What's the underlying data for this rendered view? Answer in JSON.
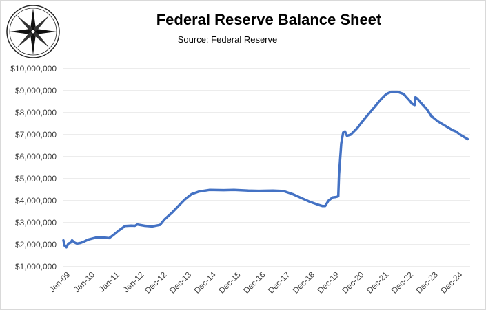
{
  "chart_data": {
    "type": "line",
    "title": "Federal Reserve Balance Sheet",
    "subtitle": "Source: Federal Reserve",
    "xlabel": "",
    "ylabel": "",
    "ylim": [
      1000000,
      10000000
    ],
    "y_ticks": [
      "$1,000,000",
      "$2,000,000",
      "$3,000,000",
      "$4,000,000",
      "$5,000,000",
      "$6,000,000",
      "$7,000,000",
      "$8,000,000",
      "$9,000,000",
      "$10,000,000"
    ],
    "y_tick_values": [
      1000000,
      2000000,
      3000000,
      4000000,
      5000000,
      6000000,
      7000000,
      8000000,
      9000000,
      10000000
    ],
    "x_ticks": [
      "Jan-09",
      "Jan-10",
      "Jan-11",
      "Jan-12",
      "Dec-12",
      "Dec-13",
      "Dec-14",
      "Dec-15",
      "Dec-16",
      "Dec-17",
      "Dec-18",
      "Dec-19",
      "Dec-20",
      "Dec-21",
      "Dec-22",
      "Dec-23",
      "Dec-24"
    ],
    "x_tick_years": [
      2009.0,
      2010.0,
      2011.0,
      2012.0,
      2012.92,
      2013.92,
      2014.92,
      2015.92,
      2016.92,
      2017.92,
      2018.92,
      2019.92,
      2020.92,
      2021.92,
      2022.92,
      2023.92,
      2024.92
    ],
    "xlim_years": [
      2009.0,
      2025.5
    ],
    "gridlines": "horizontal",
    "line_color": "#4472c4",
    "series": [
      {
        "name": "",
        "points": [
          [
            2009.0,
            2200000
          ],
          [
            2009.05,
            1950000
          ],
          [
            2009.12,
            1880000
          ],
          [
            2009.2,
            2050000
          ],
          [
            2009.3,
            2100000
          ],
          [
            2009.35,
            2200000
          ],
          [
            2009.45,
            2100000
          ],
          [
            2009.55,
            2050000
          ],
          [
            2009.7,
            2080000
          ],
          [
            2009.85,
            2150000
          ],
          [
            2010.0,
            2230000
          ],
          [
            2010.3,
            2320000
          ],
          [
            2010.6,
            2330000
          ],
          [
            2010.85,
            2300000
          ],
          [
            2011.0,
            2420000
          ],
          [
            2011.25,
            2650000
          ],
          [
            2011.5,
            2850000
          ],
          [
            2011.75,
            2870000
          ],
          [
            2011.9,
            2860000
          ],
          [
            2012.0,
            2920000
          ],
          [
            2012.3,
            2860000
          ],
          [
            2012.6,
            2830000
          ],
          [
            2012.92,
            2900000
          ],
          [
            2013.1,
            3150000
          ],
          [
            2013.4,
            3450000
          ],
          [
            2013.7,
            3800000
          ],
          [
            2013.92,
            4050000
          ],
          [
            2014.2,
            4300000
          ],
          [
            2014.5,
            4420000
          ],
          [
            2014.92,
            4490000
          ],
          [
            2015.5,
            4480000
          ],
          [
            2015.92,
            4490000
          ],
          [
            2016.5,
            4460000
          ],
          [
            2016.92,
            4450000
          ],
          [
            2017.5,
            4460000
          ],
          [
            2017.92,
            4440000
          ],
          [
            2018.3,
            4300000
          ],
          [
            2018.7,
            4100000
          ],
          [
            2019.0,
            3950000
          ],
          [
            2019.3,
            3830000
          ],
          [
            2019.5,
            3760000
          ],
          [
            2019.62,
            3760000
          ],
          [
            2019.75,
            4000000
          ],
          [
            2019.92,
            4150000
          ],
          [
            2020.05,
            4170000
          ],
          [
            2020.15,
            4200000
          ],
          [
            2020.18,
            5200000
          ],
          [
            2020.22,
            5800000
          ],
          [
            2020.27,
            6600000
          ],
          [
            2020.35,
            7100000
          ],
          [
            2020.42,
            7150000
          ],
          [
            2020.5,
            6950000
          ],
          [
            2020.65,
            7000000
          ],
          [
            2020.92,
            7300000
          ],
          [
            2021.2,
            7700000
          ],
          [
            2021.5,
            8100000
          ],
          [
            2021.8,
            8500000
          ],
          [
            2021.92,
            8650000
          ],
          [
            2022.1,
            8850000
          ],
          [
            2022.3,
            8950000
          ],
          [
            2022.55,
            8950000
          ],
          [
            2022.8,
            8850000
          ],
          [
            2023.0,
            8600000
          ],
          [
            2023.15,
            8400000
          ],
          [
            2023.25,
            8350000
          ],
          [
            2023.28,
            8700000
          ],
          [
            2023.35,
            8650000
          ],
          [
            2023.5,
            8450000
          ],
          [
            2023.75,
            8150000
          ],
          [
            2023.92,
            7850000
          ],
          [
            2024.2,
            7600000
          ],
          [
            2024.5,
            7400000
          ],
          [
            2024.8,
            7200000
          ],
          [
            2024.92,
            7150000
          ],
          [
            2025.1,
            7000000
          ],
          [
            2025.25,
            6900000
          ],
          [
            2025.4,
            6800000
          ]
        ]
      }
    ]
  }
}
